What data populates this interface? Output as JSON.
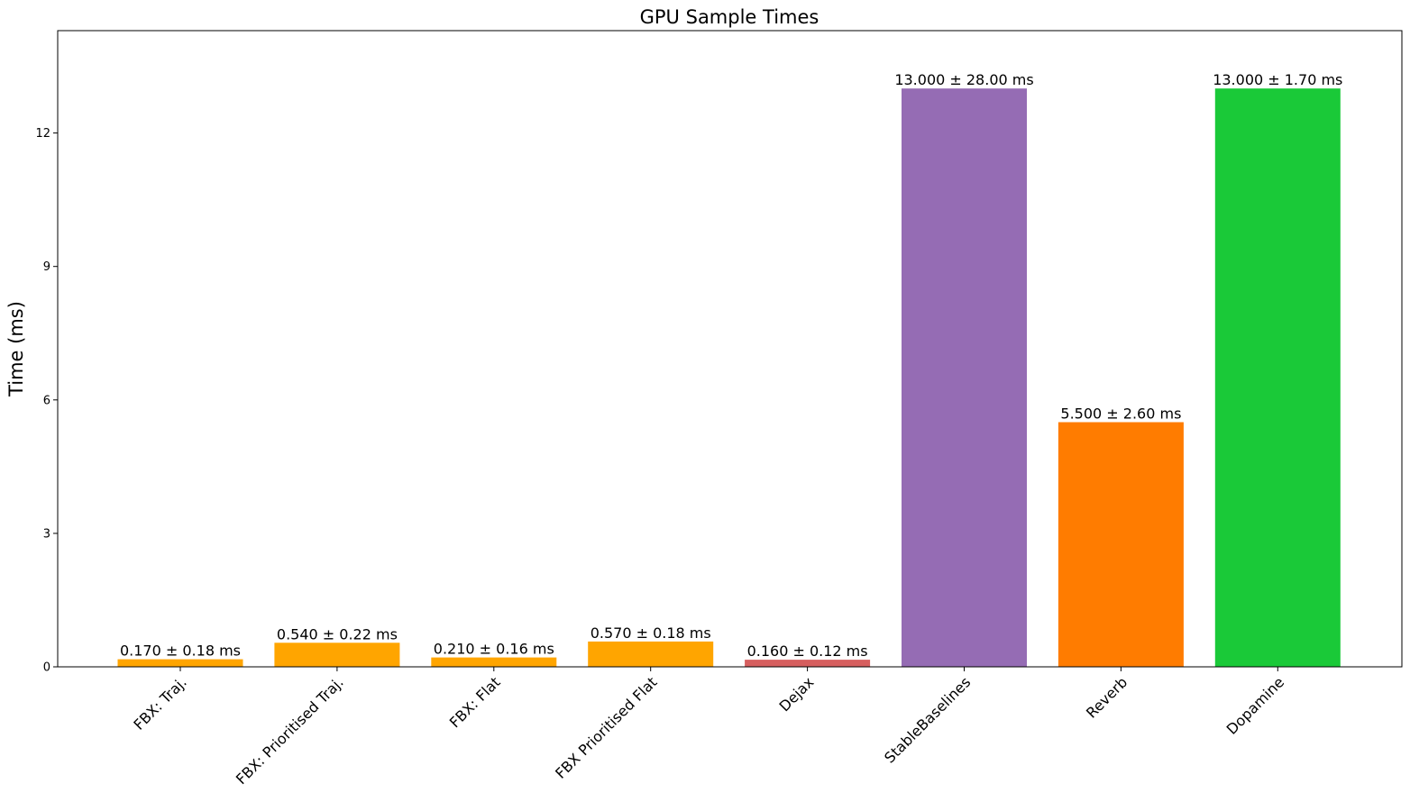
{
  "chart_data": {
    "type": "bar",
    "title": "GPU Sample Times",
    "xlabel": "",
    "ylabel": "Time (ms)",
    "ylim": [
      0,
      14.3
    ],
    "yticks": [
      0,
      3,
      6,
      9,
      12
    ],
    "categories": [
      "FBX: Traj.",
      "FBX: Prioritised Traj.",
      "FBX: Flat",
      "FBX Prioritised Flat",
      "Dejax",
      "StableBaselines",
      "Reverb",
      "Dopamine"
    ],
    "values": [
      0.17,
      0.54,
      0.21,
      0.57,
      0.16,
      13.0,
      5.5,
      13.0
    ],
    "data_labels": [
      "0.170 ± 0.18 ms",
      "0.540 ± 0.22 ms",
      "0.210 ± 0.16 ms",
      "0.570 ± 0.18 ms",
      "0.160 ± 0.12 ms",
      "13.000 ± 28.00 ms",
      "5.500 ± 2.60 ms",
      "13.000 ± 1.70 ms"
    ],
    "colors": [
      "#ffa500",
      "#ffa500",
      "#ffa500",
      "#ffa500",
      "#d65f5f",
      "#956cb4",
      "#ff7c00",
      "#1ac938"
    ],
    "grid": false,
    "legend": "none"
  }
}
